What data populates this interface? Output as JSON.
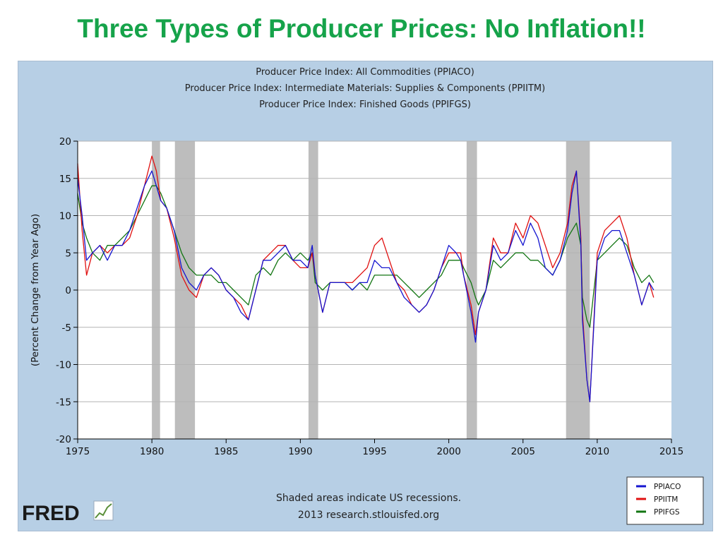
{
  "slide": {
    "title": "Three Types of  Producer Prices: No Inflation!!"
  },
  "fred": {
    "logo_text": "FRED",
    "colors": {
      "panel_bg": "#b7cfe5",
      "recession": "#bdbdbd"
    }
  },
  "footer": {
    "line1": "Shaded areas indicate US recessions.",
    "line2": "2013 research.stlouisfed.org"
  },
  "chart_data": {
    "type": "line",
    "title_lines": [
      "Producer Price Index: All Commodities (PPIACO)",
      "Producer Price Index: Intermediate Materials: Supplies & Components (PPIITM)",
      "Producer Price Index: Finished Goods (PPIFGS)"
    ],
    "ylabel": "(Percent Change from Year Ago)",
    "xlabel": "",
    "xlim": [
      1975,
      2015
    ],
    "ylim": [
      -20,
      20
    ],
    "x_ticks": [
      "1975",
      "1980",
      "1985",
      "1990",
      "1995",
      "2000",
      "2005",
      "2010",
      "2015"
    ],
    "y_ticks": [
      "20",
      "15",
      "10",
      "5",
      "0",
      "-5",
      "-10",
      "-15",
      "-20"
    ],
    "grid": true,
    "legend_position": "bottom-right",
    "recessions": [
      [
        1980.0,
        1980.55
      ],
      [
        1981.55,
        1982.9
      ],
      [
        1990.55,
        1991.2
      ],
      [
        2001.2,
        2001.9
      ],
      [
        2007.9,
        2009.5
      ]
    ],
    "series": [
      {
        "name": "PPIACO",
        "color": "#1515d0",
        "x": [
          1975,
          1975.3,
          1975.6,
          1976,
          1976.5,
          1977,
          1977.5,
          1978,
          1978.5,
          1979,
          1979.5,
          1980,
          1980.3,
          1980.6,
          1981,
          1981.5,
          1982,
          1982.5,
          1983,
          1983.5,
          1984,
          1984.5,
          1985,
          1985.5,
          1986,
          1986.5,
          1987,
          1987.5,
          1988,
          1988.5,
          1989,
          1989.5,
          1990,
          1990.5,
          1990.8,
          1991,
          1991.5,
          1992,
          1992.5,
          1993,
          1993.5,
          1994,
          1994.5,
          1995,
          1995.5,
          1996,
          1996.5,
          1997,
          1997.5,
          1998,
          1998.5,
          1999,
          1999.5,
          2000,
          2000.5,
          2000.8,
          2001,
          2001.5,
          2001.8,
          2002,
          2002.5,
          2003,
          2003.5,
          2004,
          2004.5,
          2005,
          2005.5,
          2006,
          2006.5,
          2007,
          2007.5,
          2008,
          2008.3,
          2008.6,
          2008.9,
          2009,
          2009.3,
          2009.5,
          2010,
          2010.5,
          2011,
          2011.5,
          2012,
          2012.5,
          2013,
          2013.5,
          2013.8
        ],
        "y": [
          15,
          10,
          4,
          5,
          6,
          4,
          6,
          6,
          8,
          11,
          14,
          16,
          14,
          12,
          11,
          8,
          3,
          1,
          0,
          2,
          3,
          2,
          0,
          -1,
          -3,
          -4,
          0,
          4,
          4,
          5,
          6,
          4,
          4,
          3,
          6,
          2,
          -3,
          1,
          1,
          1,
          0,
          1,
          1,
          4,
          3,
          3,
          1,
          -1,
          -2,
          -3,
          -2,
          0,
          3,
          6,
          5,
          4,
          2,
          -3,
          -7,
          -3,
          0,
          6,
          4,
          5,
          8,
          6,
          9,
          7,
          3,
          2,
          4,
          8,
          13,
          16,
          6,
          -4,
          -12,
          -15,
          4,
          7,
          8,
          8,
          5,
          2,
          -2,
          1,
          0
        ]
      },
      {
        "name": "PPIITM",
        "color": "#e01010",
        "x": [
          1975,
          1975.3,
          1975.6,
          1976,
          1976.5,
          1977,
          1977.5,
          1978,
          1978.5,
          1979,
          1979.5,
          1980,
          1980.3,
          1980.6,
          1981,
          1981.5,
          1982,
          1982.5,
          1983,
          1983.5,
          1984,
          1984.5,
          1985,
          1985.5,
          1986,
          1986.5,
          1987,
          1987.5,
          1988,
          1988.5,
          1989,
          1989.5,
          1990,
          1990.5,
          1990.8,
          1991,
          1991.5,
          1992,
          1992.5,
          1993,
          1993.5,
          1994,
          1994.5,
          1995,
          1995.5,
          1996,
          1996.5,
          1997,
          1997.5,
          1998,
          1998.5,
          1999,
          1999.5,
          2000,
          2000.5,
          2000.8,
          2001,
          2001.5,
          2001.8,
          2002,
          2002.5,
          2003,
          2003.5,
          2004,
          2004.5,
          2005,
          2005.5,
          2006,
          2006.5,
          2007,
          2007.5,
          2008,
          2008.3,
          2008.6,
          2008.9,
          2009,
          2009.3,
          2009.5,
          2010,
          2010.5,
          2011,
          2011.5,
          2012,
          2012.5,
          2013,
          2013.5,
          2013.8
        ],
        "y": [
          17,
          8,
          2,
          5,
          6,
          5,
          6,
          6,
          7,
          10,
          14,
          18,
          16,
          12,
          11,
          7,
          2,
          0,
          -1,
          2,
          3,
          2,
          0,
          -1,
          -2,
          -4,
          0,
          4,
          5,
          6,
          6,
          4,
          3,
          3,
          5,
          2,
          -3,
          1,
          1,
          1,
          1,
          2,
          3,
          6,
          7,
          4,
          1,
          0,
          -2,
          -3,
          -2,
          0,
          3,
          5,
          5,
          5,
          2,
          -2,
          -6,
          -3,
          0,
          7,
          5,
          5,
          9,
          7,
          10,
          9,
          6,
          3,
          5,
          9,
          14,
          16,
          7,
          -3,
          -12,
          -15,
          5,
          8,
          9,
          10,
          7,
          2,
          -2,
          1,
          -1
        ]
      },
      {
        "name": "PPIFGS",
        "color": "#127512",
        "x": [
          1975,
          1975.3,
          1975.6,
          1976,
          1976.5,
          1977,
          1977.5,
          1978,
          1978.5,
          1979,
          1979.5,
          1980,
          1980.3,
          1980.6,
          1981,
          1981.5,
          1982,
          1982.5,
          1983,
          1983.5,
          1984,
          1984.5,
          1985,
          1985.5,
          1986,
          1986.5,
          1987,
          1987.5,
          1988,
          1988.5,
          1989,
          1989.5,
          1990,
          1990.5,
          1990.8,
          1991,
          1991.5,
          1992,
          1992.5,
          1993,
          1993.5,
          1994,
          1994.5,
          1995,
          1995.5,
          1996,
          1996.5,
          1997,
          1997.5,
          1998,
          1998.5,
          1999,
          1999.5,
          2000,
          2000.5,
          2000.8,
          2001,
          2001.5,
          2001.8,
          2002,
          2002.5,
          2003,
          2003.5,
          2004,
          2004.5,
          2005,
          2005.5,
          2006,
          2006.5,
          2007,
          2007.5,
          2008,
          2008.3,
          2008.6,
          2008.9,
          2009,
          2009.3,
          2009.5,
          2010,
          2010.5,
          2011,
          2011.5,
          2012,
          2012.5,
          2013,
          2013.5,
          2013.8
        ],
        "y": [
          13,
          9,
          7,
          5,
          4,
          6,
          6,
          7,
          8,
          10,
          12,
          14,
          14,
          13,
          11,
          8,
          5,
          3,
          2,
          2,
          2,
          1,
          1,
          0,
          -1,
          -2,
          2,
          3,
          2,
          4,
          5,
          4,
          5,
          4,
          5,
          1,
          0,
          1,
          1,
          1,
          0,
          1,
          0,
          2,
          2,
          2,
          2,
          1,
          0,
          -1,
          0,
          1,
          2,
          4,
          4,
          4,
          3,
          1,
          -1,
          -2,
          0,
          4,
          3,
          4,
          5,
          5,
          4,
          4,
          3,
          2,
          4,
          7,
          8,
          9,
          6,
          -1,
          -4,
          -5,
          4,
          5,
          6,
          7,
          6,
          3,
          1,
          2,
          1
        ]
      }
    ]
  }
}
